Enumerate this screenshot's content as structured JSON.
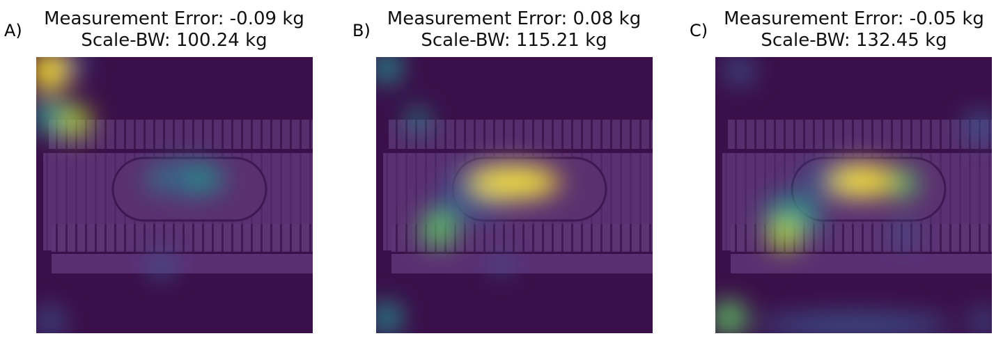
{
  "panels": [
    {
      "letter": "A)",
      "title_line1": "Measurement Error: -0.09 kg",
      "title_line2": "Scale-BW: 100.24 kg"
    },
    {
      "letter": "B)",
      "title_line1": "Measurement Error: 0.08 kg",
      "title_line2": "Scale-BW: 115.21 kg"
    },
    {
      "letter": "C)",
      "title_line1": "Measurement Error: -0.05 kg",
      "title_line2": "Scale-BW: 132.45 kg"
    }
  ],
  "colors": {
    "background": "#3b0f49",
    "body_region": "#5a2f72",
    "hot": "#fde725",
    "warm": "#5ec962",
    "mid": "#21918c",
    "cool": "#3b528b"
  }
}
